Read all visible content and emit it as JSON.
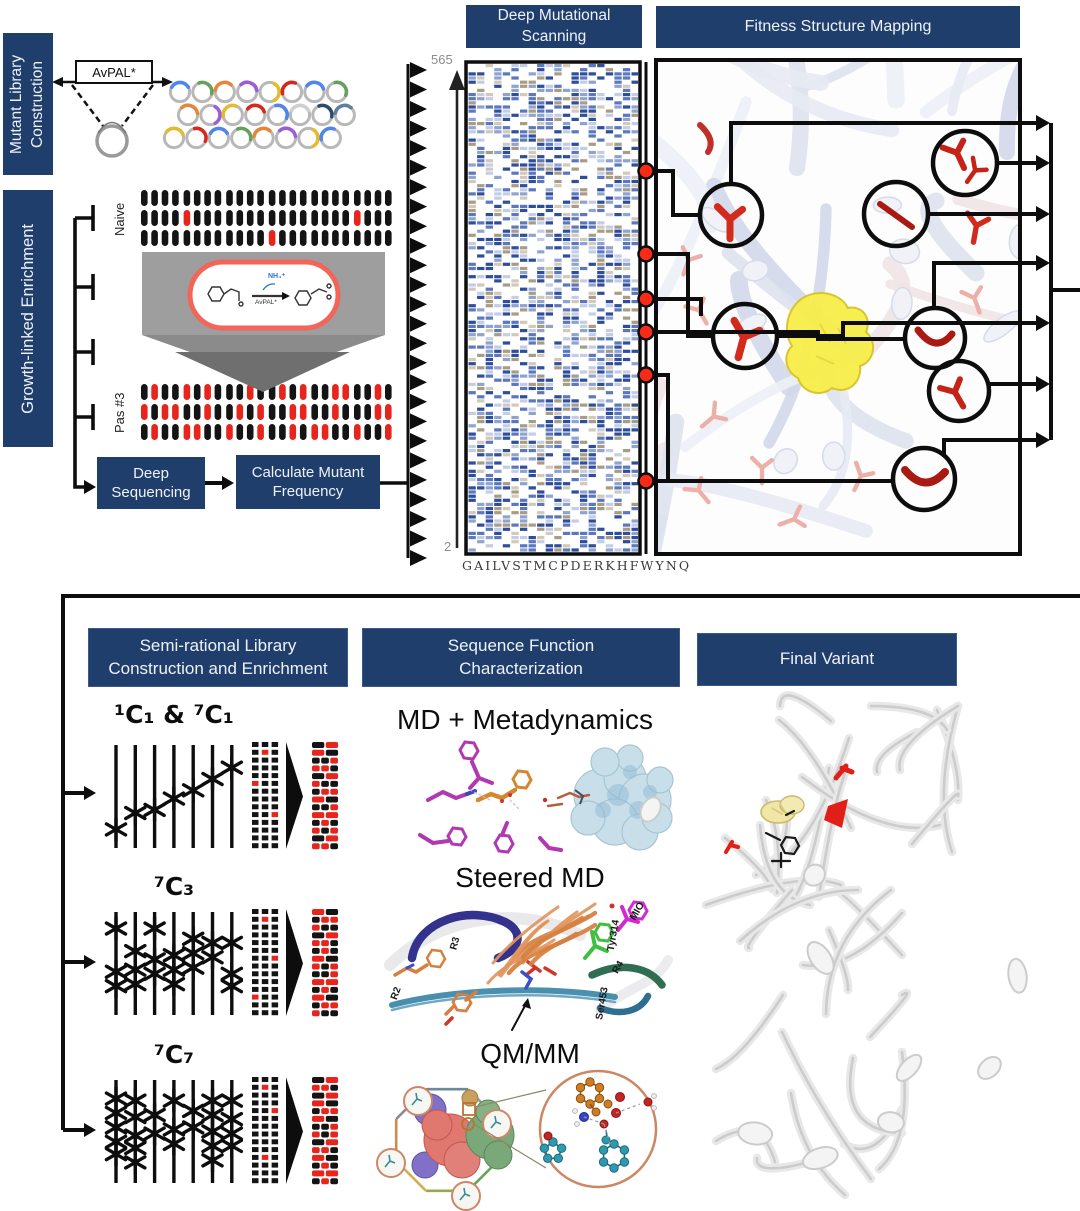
{
  "palette": {
    "navy": "#203e6b",
    "red": "#e8251c",
    "dot_red": "#fa2b16",
    "black": "#141414",
    "axis_gray": "#8c8c8c",
    "yellow": "#f7ee49",
    "heatmap_colors": [
      "#2e4d9b",
      "#5b77bd",
      "#8fa3d0",
      "#c3cde6",
      "#a99c84",
      "#d2c9b8"
    ]
  },
  "top": {
    "sidebar_mutant_library": "Mutant Library Construction",
    "sidebar_growth_enrichment": "Growth-linked Enrichment",
    "avpal_box": "AvPAL*",
    "naive_label": "Naive",
    "pas_label": "Pas #3",
    "nh4_label": "NH₄⁺",
    "enzyme_label": "AvPAL*",
    "deep_sequencing": [
      "Deep",
      "Sequencing"
    ],
    "calc_mutant_freq": [
      "Calculate Mutant",
      "Frequency"
    ],
    "passage_ticks": 4,
    "plasmid_rows": [
      [
        "#4f86ec",
        "#67a05b",
        "#e2873c",
        "#9a5fd6",
        "#e5bb2e",
        "#d6281e",
        "#4f86ec",
        "#67a05b"
      ],
      [
        "#e2873c",
        "#9a5fd6",
        "#e5bb2e",
        "#d6281e",
        "#4f86ec",
        "#cfcfcf",
        "#2f4a6e",
        "#5d7fa3"
      ],
      [
        "#e5bb2e",
        "#d6281e",
        "#4f86ec",
        "#67a05b",
        "#e2873c",
        "#9a5fd6",
        "#e5bb2e",
        "#4f86ec"
      ]
    ],
    "naive_pattern": [
      "BBBBBBBBBBBBBBBBBBBBBBBB",
      "BBBBRBBBBBBBBBBBBBBBRBBB",
      "BBBBBBBBBBBBRBBBBBBBBBBB"
    ],
    "pas_pattern": [
      "BRBBRBRBBBRBBRBRBBRRBBRB",
      "RBRRBBRBBRBRBBRRBBRBBBRR",
      "BRBBRRBBRBBRBBRBRRBBRBBR"
    ]
  },
  "dms": {
    "header": [
      "Deep Mutational",
      "Scanning"
    ],
    "y_axis_top": "565",
    "y_axis_bottom": "2",
    "x_axis_sequence": "GAILVSTMCPDERKHFWYNQ",
    "arrow_count": 26,
    "grid_rows": 118,
    "grid_cols": 20
  },
  "fsm": {
    "header": "Fitness Structure Mapping",
    "mapped_positions": 6,
    "circled_residues": 7,
    "exit_arrows": 7
  },
  "bottom": {
    "semi_rational_header": [
      "Semi-rational Library",
      "Construction and Enrichment"
    ],
    "seq_func_header": [
      "Sequence Function",
      "Characterization"
    ],
    "final_variant_header": "Final Variant",
    "md_title": "MD + Metadynamics",
    "steered_md_title": "Steered MD",
    "qmmm_title": "QM/MM",
    "steered_md_labels": {
      "r2": "R2",
      "r3": "R3",
      "r4": "R4",
      "mio": "MIO",
      "tyr": "Tyr314",
      "ser": "Ser453"
    },
    "libraries": [
      {
        "label": "¹C₁ & ⁷C₁",
        "asterisks": [
          [
            0.82
          ],
          [
            0.66
          ],
          [
            0.63
          ],
          [
            0.52
          ],
          [
            0.44
          ],
          [
            0.33
          ],
          [
            0.22
          ]
        ],
        "matrix_red": [
          [
            1,
            1
          ],
          [
            5,
            0
          ],
          [
            9,
            2
          ]
        ],
        "enrich": [
          "KR",
          "RK",
          "KKR",
          "RRK",
          "KR",
          "RKK",
          "KRR",
          "RK",
          "KKR",
          "RR",
          "KRK",
          "RKR",
          "KR",
          "RRK"
        ]
      },
      {
        "label": "⁷C₃",
        "asterisks": [
          [
            0.16,
            0.58,
            0.72
          ],
          [
            0.38,
            0.56,
            0.7
          ],
          [
            0.16,
            0.46,
            0.6
          ],
          [
            0.42,
            0.56,
            0.7
          ],
          [
            0.26,
            0.4,
            0.54
          ],
          [
            0.3,
            0.44
          ],
          [
            0.3,
            0.6,
            0.72
          ]
        ],
        "matrix_red": [
          [
            1,
            1
          ],
          [
            6,
            2
          ],
          [
            11,
            0
          ]
        ],
        "enrich": [
          "RK",
          "KRR",
          "RKK",
          "KR",
          "RRK",
          "KRK",
          "RK",
          "RKR",
          "KKR",
          "RR",
          "KRK",
          "RK",
          "KRR",
          "RKK"
        ]
      },
      {
        "label": "⁷C₇",
        "asterisks": [
          [
            0.18,
            0.32,
            0.46,
            0.6,
            0.72
          ],
          [
            0.2,
            0.36,
            0.54,
            0.66,
            0.8
          ],
          [
            0.34,
            0.52
          ],
          [
            0.2,
            0.48,
            0.62
          ],
          [
            0.3,
            0.46
          ],
          [
            0.2,
            0.34,
            0.5,
            0.64,
            0.78
          ],
          [
            0.2,
            0.38,
            0.52,
            0.64
          ]
        ],
        "matrix_red": [
          [
            1,
            1
          ],
          [
            4,
            2
          ],
          [
            10,
            1
          ]
        ],
        "enrich": [
          "KR",
          "RRK",
          "KR",
          "RK",
          "KRR",
          "RK",
          "KKR",
          "RKR",
          "KR",
          "RRK",
          "RK",
          "KRK",
          "RR",
          "KRK"
        ]
      }
    ]
  }
}
